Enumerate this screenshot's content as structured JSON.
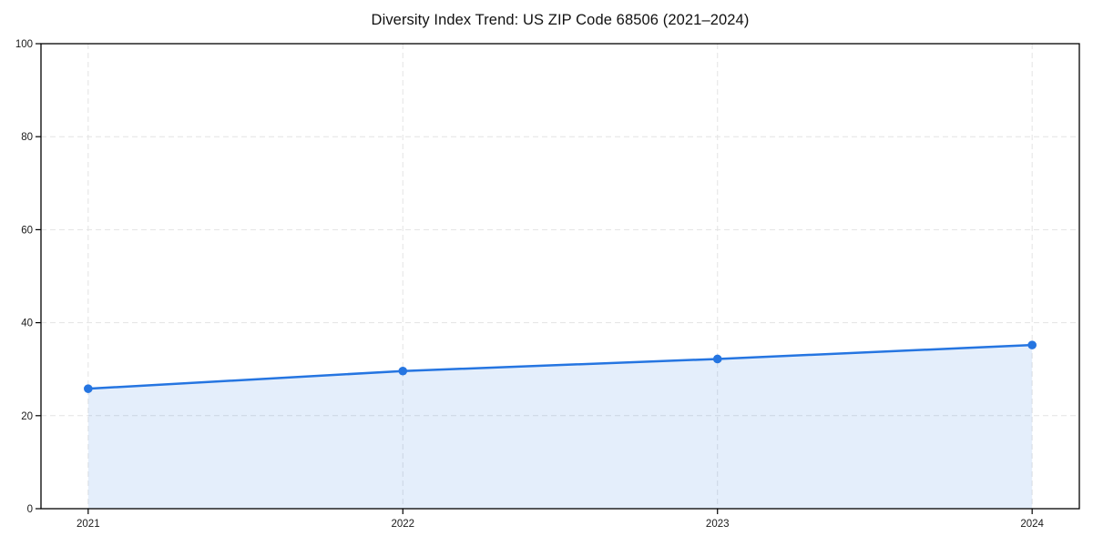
{
  "chart_data": {
    "type": "area",
    "title": "Diversity Index Trend: US ZIP Code 68506 (2021–2024)",
    "x": [
      2021,
      2022,
      2023,
      2024
    ],
    "values": [
      25.8,
      29.6,
      32.2,
      35.2
    ],
    "xticks": [
      "2021",
      "2022",
      "2023",
      "2024"
    ],
    "yticks": [
      "0",
      "20",
      "40",
      "60",
      "80",
      "100"
    ],
    "ytick_values": [
      0,
      20,
      40,
      60,
      80,
      100
    ],
    "xlim": [
      2020.85,
      2024.15
    ],
    "ylim": [
      0,
      100
    ],
    "xlabel": "",
    "ylabel": "",
    "grid": true,
    "grid_style": "dashed",
    "legend_position": "none",
    "line_color": "#2575e1",
    "marker_color": "#2575e1",
    "fill_color": "rgba(37, 117, 225, 0.12)",
    "grid_color": "#e3e3e3",
    "spine_color": "#000000",
    "tick_label_color": "#1a1a1a",
    "background_color": "#ffffff"
  }
}
